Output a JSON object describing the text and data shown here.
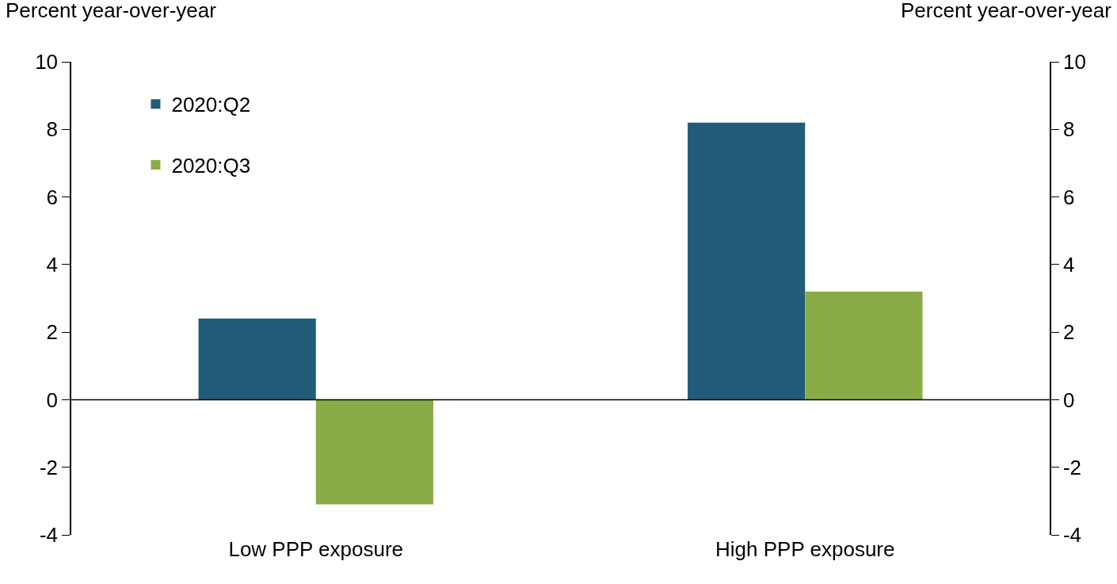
{
  "chart_data": {
    "type": "bar",
    "ylabel": "Percent year-over-year",
    "y2label": "Percent year-over-year",
    "categories": [
      "Low PPP exposure",
      "High PPP exposure"
    ],
    "series": [
      {
        "name": "2020:Q2",
        "color": "#215d7a",
        "values": [
          2.4,
          8.2
        ]
      },
      {
        "name": "2020:Q3",
        "color": "#89ac46",
        "values": [
          -3.1,
          3.2
        ]
      }
    ],
    "ylim": [
      -4,
      10
    ],
    "yticks": [
      -4,
      -2,
      0,
      2,
      4,
      6,
      8,
      10
    ],
    "y2lim": [
      -4,
      10
    ],
    "y2ticks": [
      -4,
      -2,
      0,
      2,
      4,
      6,
      8,
      10
    ],
    "ref_lines": [
      {
        "axis": "y",
        "value": 0,
        "color": "#000000"
      }
    ],
    "legend": "top left"
  }
}
